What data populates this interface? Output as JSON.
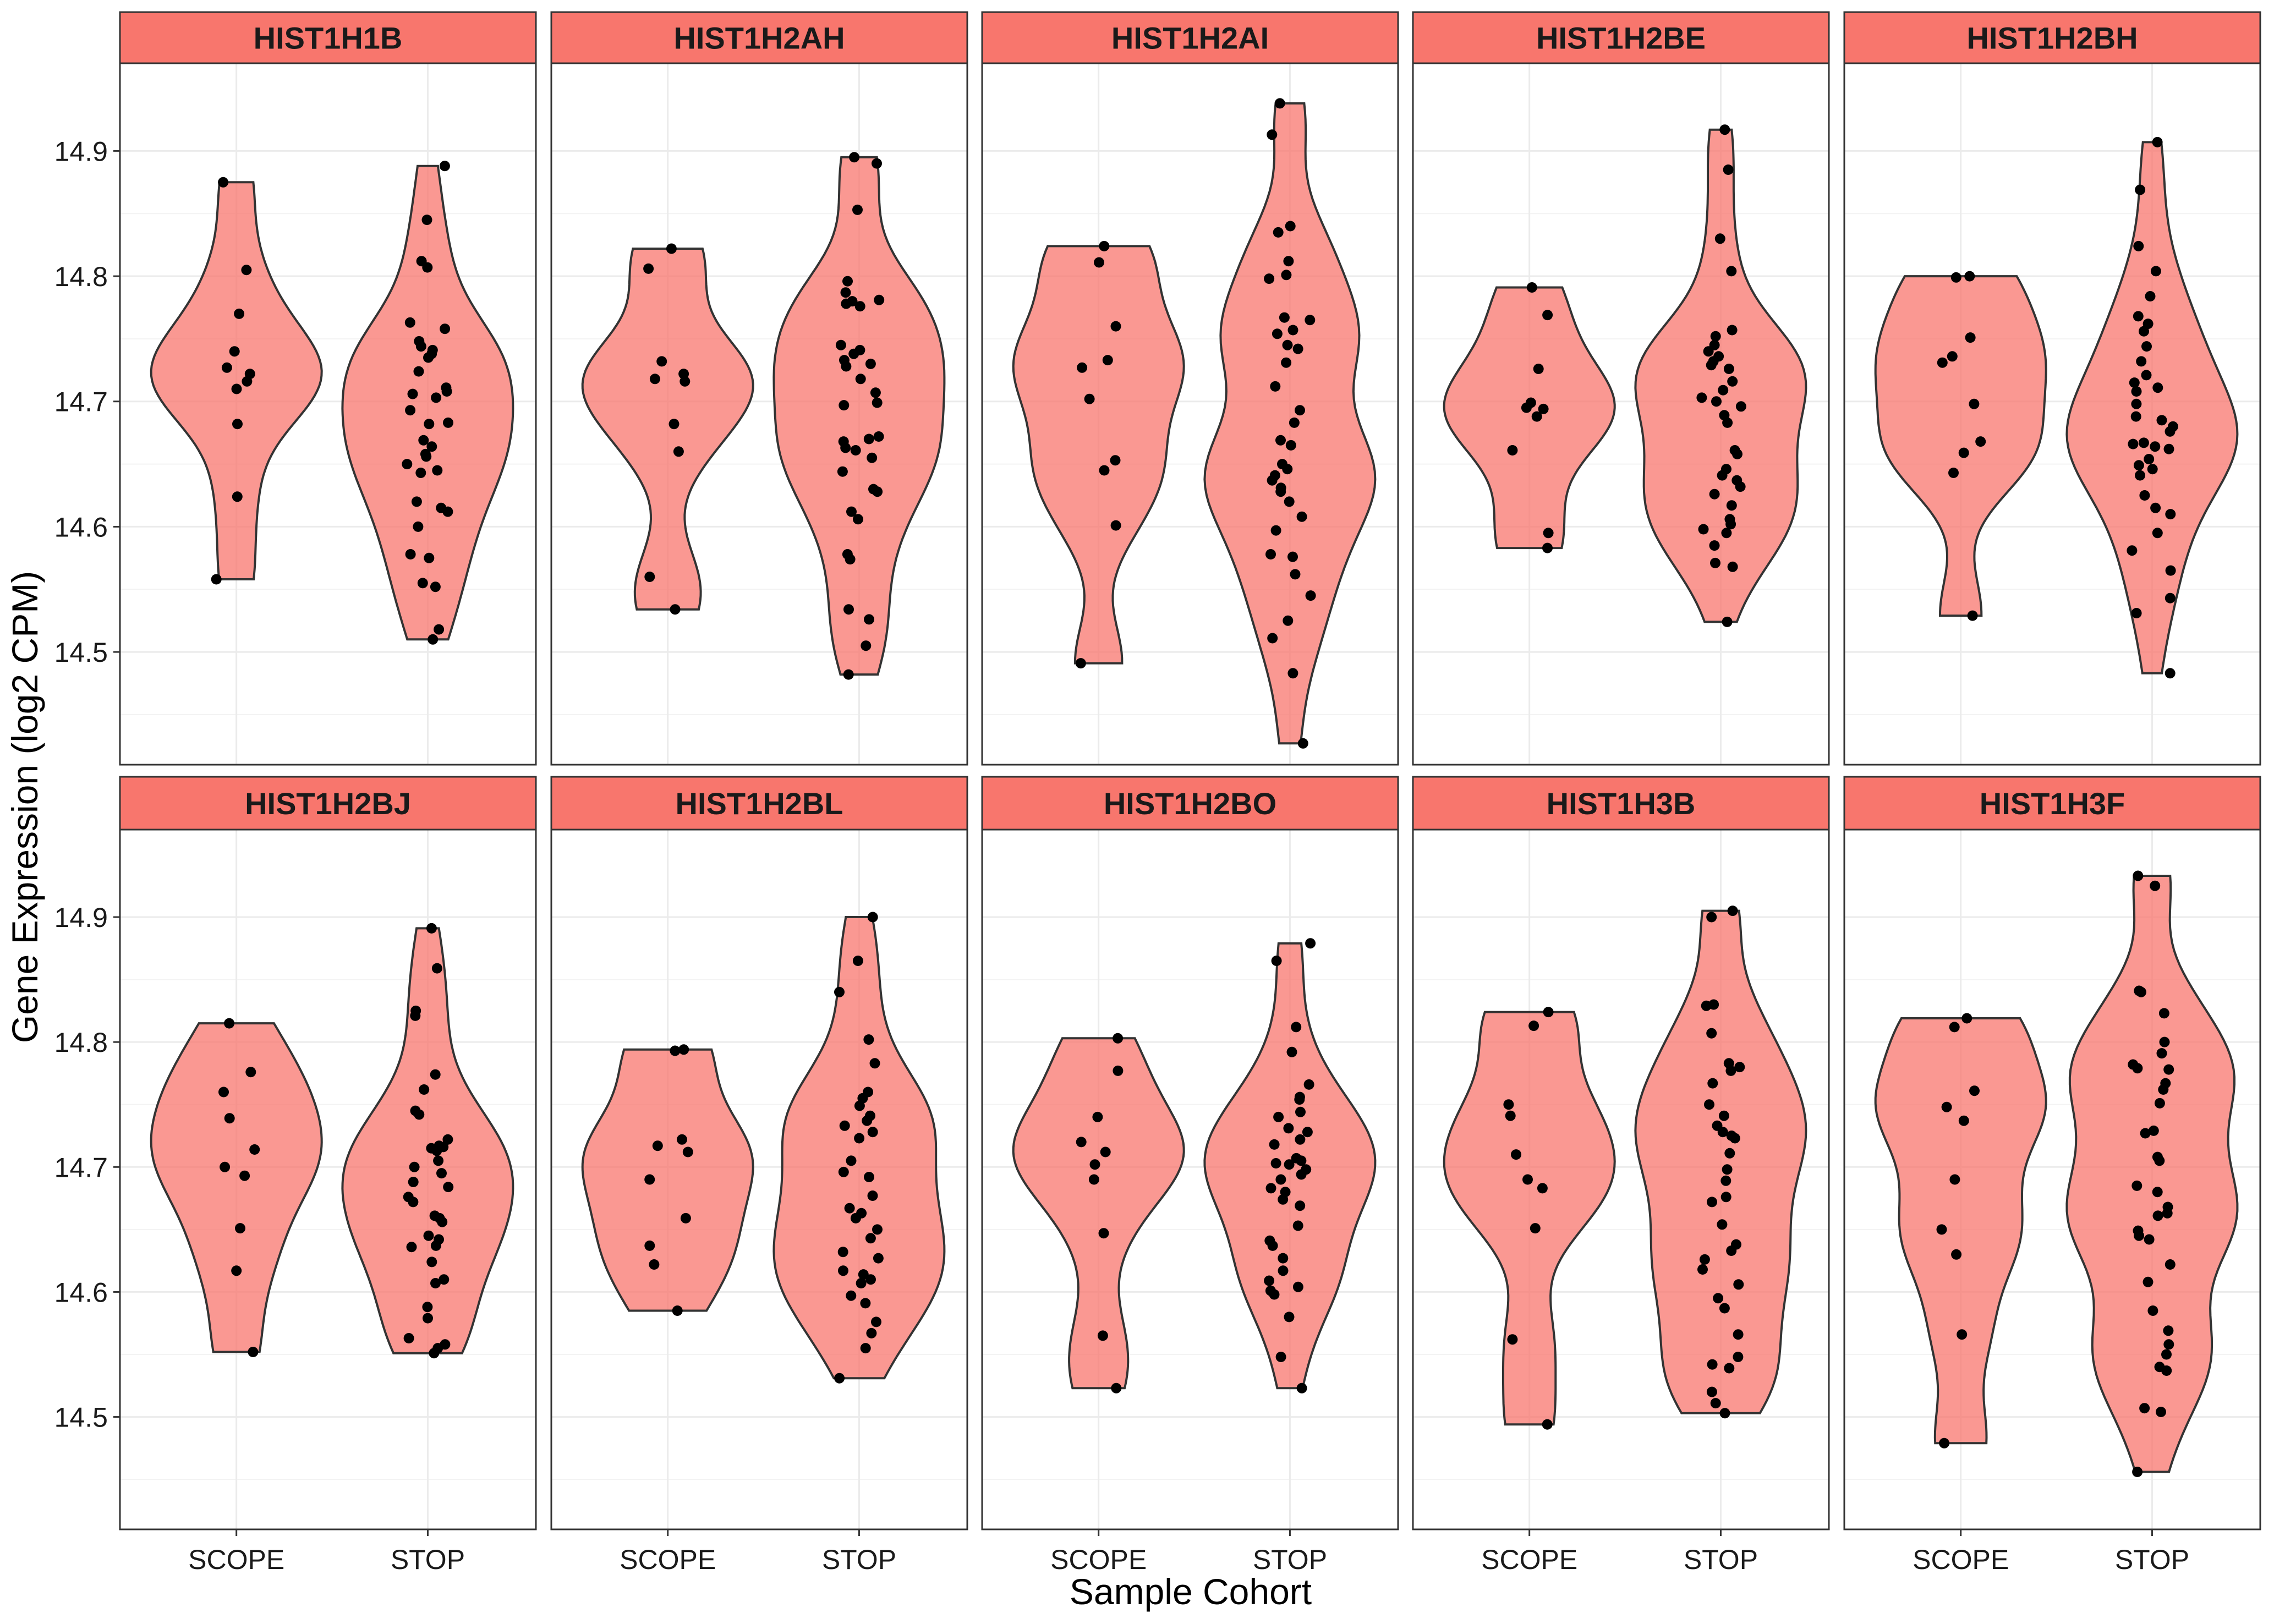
{
  "chart_data": {
    "type": "violin",
    "xlabel": "Sample Cohort",
    "ylabel": "Gene Expression (log2 CPM)",
    "categories": [
      "SCOPE",
      "STOP"
    ],
    "y_ticks": [
      14.5,
      14.6,
      14.7,
      14.8,
      14.9
    ],
    "ylim": [
      14.41,
      14.97
    ],
    "grid": true,
    "layout": "facet grid, 2 rows x 5 columns",
    "colors": {
      "strip": "#f8766d",
      "violin_fill": "#f8766d",
      "violin_stroke": "#333333",
      "point": "#000000",
      "grid": "#ebebeb",
      "panel_border": "#333333"
    },
    "panels": [
      {
        "title": "HIST1H1B",
        "groups": [
          {
            "name": "SCOPE",
            "range": [
              14.558,
              14.875
            ],
            "points": [
              14.875,
              14.805,
              14.77,
              14.74,
              14.727,
              14.722,
              14.716,
              14.71,
              14.682,
              14.624,
              14.558
            ]
          },
          {
            "name": "STOP",
            "range": [
              14.51,
              14.888
            ],
            "points": [
              14.888,
              14.845,
              14.812,
              14.807,
              14.763,
              14.758,
              14.748,
              14.744,
              14.741,
              14.738,
              14.735,
              14.724,
              14.711,
              14.708,
              14.706,
              14.703,
              14.693,
              14.683,
              14.682,
              14.669,
              14.664,
              14.658,
              14.656,
              14.65,
              14.645,
              14.643,
              14.62,
              14.615,
              14.612,
              14.6,
              14.578,
              14.575,
              14.555,
              14.552,
              14.518,
              14.51
            ]
          }
        ]
      },
      {
        "title": "HIST1H2AH",
        "groups": [
          {
            "name": "SCOPE",
            "range": [
              14.534,
              14.822
            ],
            "points": [
              14.822,
              14.806,
              14.732,
              14.722,
              14.718,
              14.716,
              14.682,
              14.66,
              14.56,
              14.534
            ]
          },
          {
            "name": "STOP",
            "range": [
              14.482,
              14.895
            ],
            "points": [
              14.895,
              14.89,
              14.853,
              14.796,
              14.787,
              14.781,
              14.78,
              14.778,
              14.776,
              14.745,
              14.741,
              14.738,
              14.733,
              14.73,
              14.728,
              14.718,
              14.707,
              14.699,
              14.697,
              14.672,
              14.67,
              14.668,
              14.663,
              14.661,
              14.655,
              14.644,
              14.63,
              14.628,
              14.612,
              14.606,
              14.578,
              14.574,
              14.534,
              14.526,
              14.505,
              14.482
            ]
          }
        ]
      },
      {
        "title": "HIST1H2AI",
        "groups": [
          {
            "name": "SCOPE",
            "range": [
              14.491,
              14.824
            ],
            "points": [
              14.824,
              14.811,
              14.76,
              14.733,
              14.727,
              14.702,
              14.653,
              14.645,
              14.601,
              14.491
            ]
          },
          {
            "name": "STOP",
            "range": [
              14.427,
              14.938
            ],
            "points": [
              14.938,
              14.913,
              14.84,
              14.835,
              14.812,
              14.801,
              14.798,
              14.767,
              14.765,
              14.757,
              14.754,
              14.745,
              14.742,
              14.731,
              14.712,
              14.693,
              14.683,
              14.669,
              14.665,
              14.65,
              14.646,
              14.641,
              14.637,
              14.631,
              14.628,
              14.62,
              14.608,
              14.597,
              14.578,
              14.576,
              14.562,
              14.545,
              14.525,
              14.511,
              14.483,
              14.427
            ]
          }
        ]
      },
      {
        "title": "HIST1H2BE",
        "groups": [
          {
            "name": "SCOPE",
            "range": [
              14.583,
              14.791
            ],
            "points": [
              14.791,
              14.769,
              14.726,
              14.699,
              14.695,
              14.694,
              14.688,
              14.661,
              14.595,
              14.583
            ]
          },
          {
            "name": "STOP",
            "range": [
              14.524,
              14.917
            ],
            "points": [
              14.917,
              14.885,
              14.83,
              14.804,
              14.757,
              14.752,
              14.745,
              14.74,
              14.736,
              14.732,
              14.729,
              14.726,
              14.716,
              14.709,
              14.703,
              14.7,
              14.696,
              14.689,
              14.683,
              14.661,
              14.658,
              14.646,
              14.641,
              14.637,
              14.632,
              14.626,
              14.617,
              14.606,
              14.602,
              14.598,
              14.595,
              14.585,
              14.571,
              14.568,
              14.524
            ]
          }
        ]
      },
      {
        "title": "HIST1H2BH",
        "groups": [
          {
            "name": "SCOPE",
            "range": [
              14.529,
              14.8
            ],
            "points": [
              14.8,
              14.799,
              14.751,
              14.736,
              14.731,
              14.698,
              14.668,
              14.659,
              14.643,
              14.529
            ]
          },
          {
            "name": "STOP",
            "range": [
              14.483,
              14.907
            ],
            "points": [
              14.907,
              14.869,
              14.824,
              14.804,
              14.784,
              14.768,
              14.762,
              14.756,
              14.744,
              14.732,
              14.721,
              14.715,
              14.711,
              14.708,
              14.698,
              14.688,
              14.685,
              14.68,
              14.676,
              14.667,
              14.666,
              14.664,
              14.662,
              14.654,
              14.649,
              14.646,
              14.641,
              14.625,
              14.615,
              14.61,
              14.595,
              14.581,
              14.565,
              14.543,
              14.531,
              14.483
            ]
          }
        ]
      },
      {
        "title": "HIST1H2BJ",
        "groups": [
          {
            "name": "SCOPE",
            "range": [
              14.552,
              14.815
            ],
            "points": [
              14.815,
              14.776,
              14.76,
              14.739,
              14.714,
              14.7,
              14.693,
              14.651,
              14.617,
              14.552
            ]
          },
          {
            "name": "STOP",
            "range": [
              14.551,
              14.891
            ],
            "points": [
              14.891,
              14.859,
              14.825,
              14.821,
              14.774,
              14.762,
              14.745,
              14.742,
              14.722,
              14.717,
              14.716,
              14.715,
              14.713,
              14.705,
              14.7,
              14.695,
              14.688,
              14.684,
              14.676,
              14.672,
              14.661,
              14.659,
              14.656,
              14.645,
              14.642,
              14.637,
              14.636,
              14.624,
              14.61,
              14.607,
              14.588,
              14.579,
              14.563,
              14.558,
              14.555,
              14.551
            ]
          }
        ]
      },
      {
        "title": "HIST1H2BL",
        "groups": [
          {
            "name": "SCOPE",
            "range": [
              14.585,
              14.794
            ],
            "points": [
              14.794,
              14.793,
              14.722,
              14.717,
              14.712,
              14.69,
              14.659,
              14.637,
              14.622,
              14.585
            ]
          },
          {
            "name": "STOP",
            "range": [
              14.531,
              14.9
            ],
            "points": [
              14.9,
              14.865,
              14.84,
              14.802,
              14.783,
              14.76,
              14.755,
              14.749,
              14.741,
              14.737,
              14.733,
              14.728,
              14.723,
              14.705,
              14.696,
              14.692,
              14.677,
              14.667,
              14.663,
              14.659,
              14.65,
              14.643,
              14.632,
              14.627,
              14.617,
              14.614,
              14.61,
              14.607,
              14.597,
              14.591,
              14.576,
              14.567,
              14.555,
              14.531
            ]
          }
        ]
      },
      {
        "title": "HIST1H2BO",
        "groups": [
          {
            "name": "SCOPE",
            "range": [
              14.523,
              14.803
            ],
            "points": [
              14.803,
              14.777,
              14.74,
              14.72,
              14.712,
              14.702,
              14.69,
              14.647,
              14.565,
              14.523
            ]
          },
          {
            "name": "STOP",
            "range": [
              14.523,
              14.879
            ],
            "points": [
              14.879,
              14.865,
              14.812,
              14.792,
              14.766,
              14.756,
              14.754,
              14.744,
              14.74,
              14.731,
              14.728,
              14.722,
              14.718,
              14.707,
              14.705,
              14.703,
              14.702,
              14.698,
              14.694,
              14.69,
              14.683,
              14.68,
              14.674,
              14.669,
              14.653,
              14.641,
              14.637,
              14.627,
              14.617,
              14.609,
              14.604,
              14.601,
              14.598,
              14.58,
              14.548,
              14.523
            ]
          }
        ]
      },
      {
        "title": "HIST1H3B",
        "groups": [
          {
            "name": "SCOPE",
            "range": [
              14.494,
              14.824
            ],
            "points": [
              14.824,
              14.813,
              14.75,
              14.741,
              14.71,
              14.69,
              14.683,
              14.651,
              14.562,
              14.494
            ]
          },
          {
            "name": "STOP",
            "range": [
              14.503,
              14.905
            ],
            "points": [
              14.905,
              14.9,
              14.83,
              14.829,
              14.807,
              14.783,
              14.78,
              14.777,
              14.767,
              14.75,
              14.741,
              14.733,
              14.728,
              14.725,
              14.723,
              14.711,
              14.698,
              14.689,
              14.676,
              14.672,
              14.654,
              14.638,
              14.633,
              14.626,
              14.618,
              14.606,
              14.595,
              14.587,
              14.566,
              14.548,
              14.542,
              14.539,
              14.52,
              14.511,
              14.503
            ]
          }
        ]
      },
      {
        "title": "HIST1H3F",
        "groups": [
          {
            "name": "SCOPE",
            "range": [
              14.479,
              14.819
            ],
            "points": [
              14.819,
              14.812,
              14.761,
              14.748,
              14.737,
              14.69,
              14.65,
              14.63,
              14.566,
              14.479
            ]
          },
          {
            "name": "STOP",
            "range": [
              14.456,
              14.933
            ],
            "points": [
              14.933,
              14.925,
              14.841,
              14.84,
              14.823,
              14.8,
              14.791,
              14.782,
              14.779,
              14.778,
              14.767,
              14.762,
              14.751,
              14.729,
              14.727,
              14.708,
              14.705,
              14.685,
              14.68,
              14.668,
              14.663,
              14.661,
              14.649,
              14.645,
              14.642,
              14.622,
              14.608,
              14.585,
              14.569,
              14.558,
              14.55,
              14.54,
              14.537,
              14.507,
              14.504,
              14.456
            ]
          }
        ]
      }
    ]
  }
}
